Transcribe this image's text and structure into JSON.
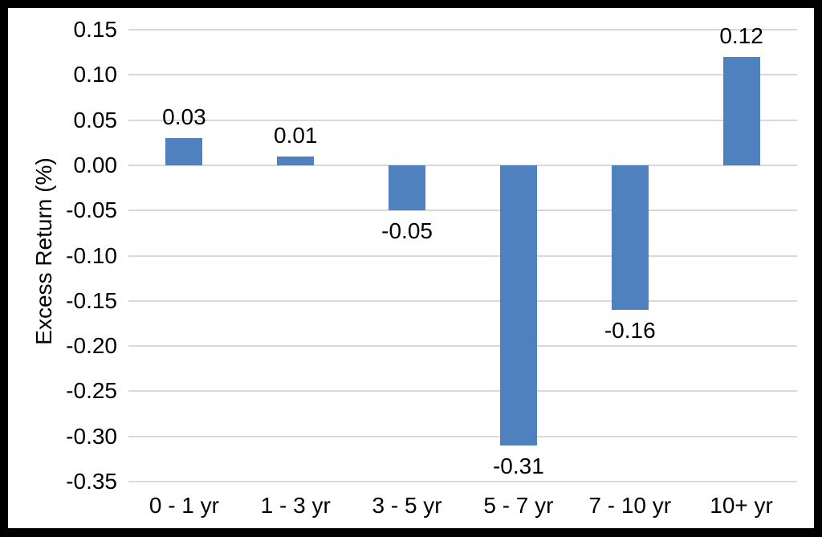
{
  "chart_data": {
    "type": "bar",
    "title": "",
    "xlabel": "",
    "ylabel": "Excess Return (%)",
    "categories": [
      "0 - 1 yr",
      "1 - 3 yr",
      "3 - 5 yr",
      "5 - 7 yr",
      "7 - 10 yr",
      "10+ yr"
    ],
    "values": [
      0.03,
      0.01,
      -0.05,
      -0.31,
      -0.16,
      0.12
    ],
    "data_labels": [
      "0.03",
      "0.01",
      "-0.05",
      "-0.31",
      "-0.16",
      "0.12"
    ],
    "ylim": [
      -0.35,
      0.15
    ],
    "ytick_step": 0.05,
    "yticks": [
      "0.15",
      "0.10",
      "0.05",
      "0.00",
      "-0.05",
      "-0.10",
      "-0.15",
      "-0.20",
      "-0.25",
      "-0.30",
      "-0.35"
    ],
    "grid": true,
    "legend_position": "none",
    "bar_color": "#4E81BD",
    "gridline_color": "#D9D9D9",
    "text_color": "#000000",
    "background_color": "#FFFFFF",
    "frame_color": "#000000"
  }
}
